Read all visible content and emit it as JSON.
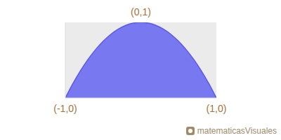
{
  "chart_data": {
    "type": "area",
    "x": [
      -1,
      -0.9,
      -0.8,
      -0.7,
      -0.6,
      -0.5,
      -0.4,
      -0.3,
      -0.2,
      -0.1,
      0,
      0.1,
      0.2,
      0.3,
      0.4,
      0.5,
      0.6,
      0.7,
      0.8,
      0.9,
      1
    ],
    "values": [
      0,
      0.19,
      0.36,
      0.51,
      0.64,
      0.75,
      0.84,
      0.91,
      0.96,
      0.99,
      1,
      0.99,
      0.96,
      0.91,
      0.84,
      0.75,
      0.64,
      0.51,
      0.36,
      0.19,
      0
    ],
    "color": "#7878f0",
    "xlim": [
      -1,
      1
    ],
    "ylim": [
      0,
      1
    ],
    "xticks": [
      -1,
      1
    ],
    "yticks": [
      0,
      1
    ],
    "tick_labels": false,
    "annotations": [
      {
        "text": "(-1,0)",
        "x": -1,
        "y": 0
      },
      {
        "text": "(0,1)",
        "x": 0,
        "y": 1
      },
      {
        "text": "(1,0)",
        "x": 1,
        "y": 0
      }
    ],
    "credit": "matematicasVisuales"
  }
}
